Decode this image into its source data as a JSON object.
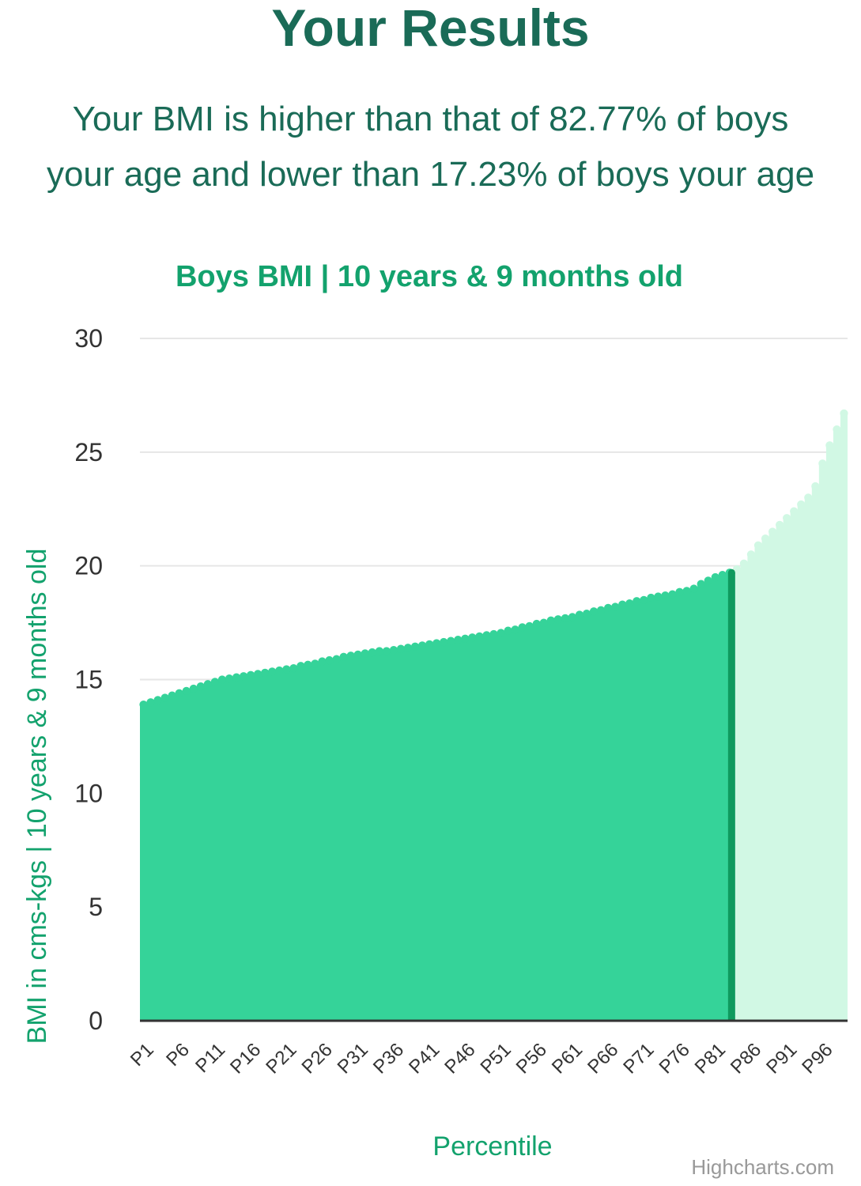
{
  "page": {
    "title": "Your Results",
    "summary_line1": "Your BMI is higher than that of 82.77% of boys",
    "summary_line2": "your age and lower than 17.23% of boys your age"
  },
  "colors": {
    "heading": "#1a6b57",
    "accent": "#13a26d",
    "area_below": "#35d399",
    "area_above": "#d1f8e4",
    "marker": "#0f9a5e",
    "grid": "#e6e6e6"
  },
  "credits": "Highcharts.com",
  "chart_data": {
    "type": "area",
    "title": "Boys BMI | 10 years & 9 months old",
    "xlabel": "Percentile",
    "ylabel": "BMI in cms-kgs | 10 years & 9 months old",
    "ylim": [
      0,
      30
    ],
    "yticks": [
      0,
      5,
      10,
      15,
      20,
      25,
      30
    ],
    "grid": true,
    "legend": "none",
    "x": [
      "P1",
      "P2",
      "P3",
      "P4",
      "P5",
      "P6",
      "P7",
      "P8",
      "P9",
      "P10",
      "P11",
      "P12",
      "P13",
      "P14",
      "P15",
      "P16",
      "P17",
      "P18",
      "P19",
      "P20",
      "P21",
      "P22",
      "P23",
      "P24",
      "P25",
      "P26",
      "P27",
      "P28",
      "P29",
      "P30",
      "P31",
      "P32",
      "P33",
      "P34",
      "P35",
      "P36",
      "P37",
      "P38",
      "P39",
      "P40",
      "P41",
      "P42",
      "P43",
      "P44",
      "P45",
      "P46",
      "P47",
      "P48",
      "P49",
      "P50",
      "P51",
      "P52",
      "P53",
      "P54",
      "P55",
      "P56",
      "P57",
      "P58",
      "P59",
      "P60",
      "P61",
      "P62",
      "P63",
      "P64",
      "P65",
      "P66",
      "P67",
      "P68",
      "P69",
      "P70",
      "P71",
      "P72",
      "P73",
      "P74",
      "P75",
      "P76",
      "P77",
      "P78",
      "P79",
      "P80",
      "P81",
      "P82",
      "P83",
      "P84",
      "P85",
      "P86",
      "P87",
      "P88",
      "P89",
      "P90",
      "P91",
      "P92",
      "P93",
      "P94",
      "P95",
      "P96",
      "P97",
      "P98",
      "P99"
    ],
    "x_tick_labels": [
      "P1",
      "P6",
      "P11",
      "P16",
      "P21",
      "P26",
      "P31",
      "P36",
      "P41",
      "P46",
      "P51",
      "P56",
      "P61",
      "P66",
      "P71",
      "P76",
      "P81",
      "P86",
      "P91",
      "P96"
    ],
    "values": [
      13.9,
      14.0,
      14.1,
      14.2,
      14.3,
      14.4,
      14.5,
      14.6,
      14.7,
      14.8,
      14.9,
      15.0,
      15.05,
      15.1,
      15.15,
      15.2,
      15.25,
      15.3,
      15.35,
      15.4,
      15.45,
      15.5,
      15.6,
      15.65,
      15.7,
      15.8,
      15.85,
      15.9,
      16.0,
      16.05,
      16.1,
      16.15,
      16.2,
      16.25,
      16.25,
      16.3,
      16.35,
      16.4,
      16.45,
      16.5,
      16.55,
      16.6,
      16.65,
      16.7,
      16.75,
      16.8,
      16.85,
      16.9,
      16.95,
      17.0,
      17.05,
      17.15,
      17.2,
      17.3,
      17.35,
      17.45,
      17.5,
      17.6,
      17.65,
      17.7,
      17.75,
      17.85,
      17.9,
      18.0,
      18.05,
      18.15,
      18.2,
      18.3,
      18.35,
      18.45,
      18.5,
      18.6,
      18.65,
      18.7,
      18.75,
      18.85,
      18.9,
      19.0,
      19.2,
      19.35,
      19.5,
      19.6,
      19.7,
      19.85,
      20.1,
      20.5,
      20.9,
      21.2,
      21.5,
      21.8,
      22.1,
      22.4,
      22.7,
      23.0,
      23.5,
      24.5,
      25.3,
      26.0,
      26.7
    ],
    "highlight_percentile": 82.77,
    "highlight_value": 19.7
  }
}
